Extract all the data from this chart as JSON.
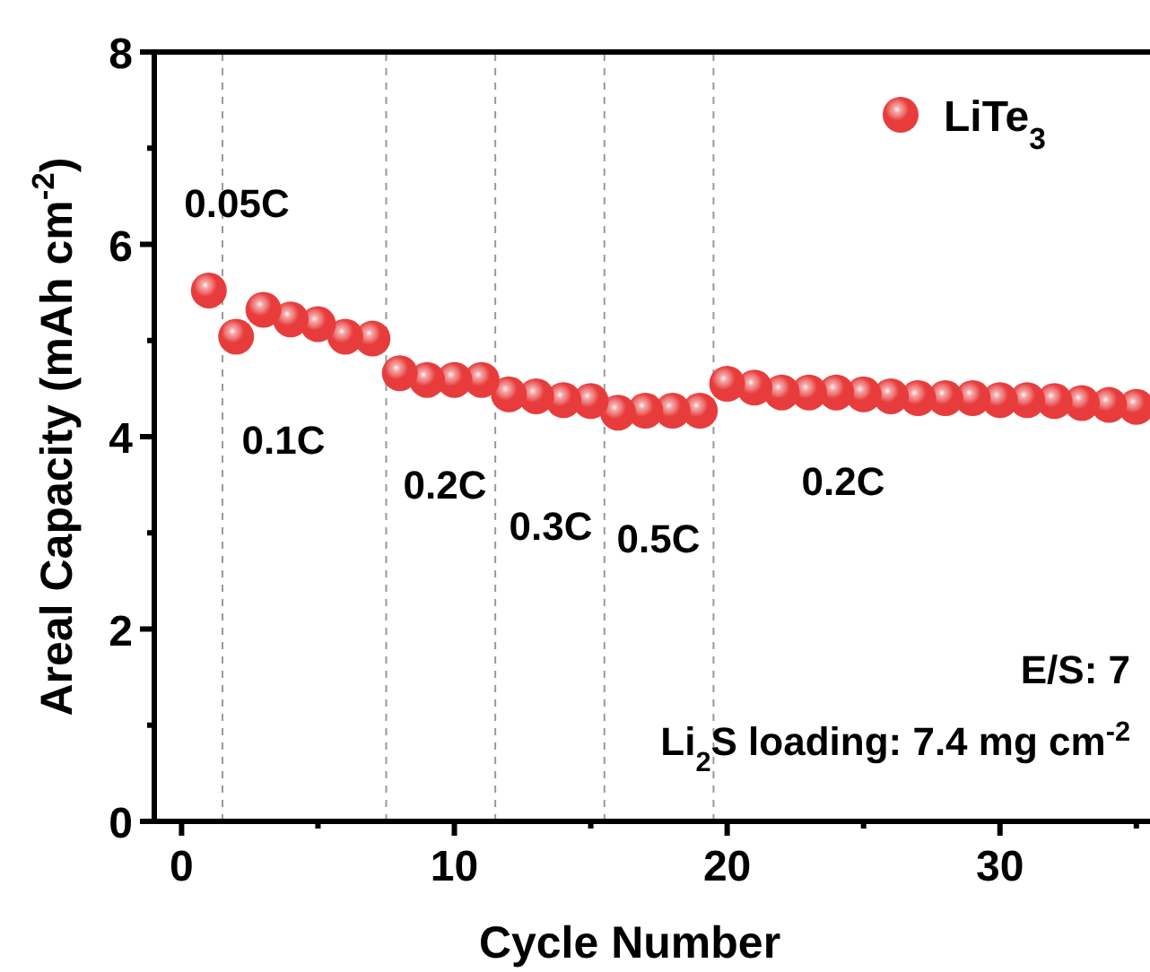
{
  "chart_data": {
    "type": "scatter",
    "xlabel": "Cycle Number",
    "ylabel": "Areal Capacity (mAh cm$^{-2}$)",
    "x": [
      1,
      2,
      3,
      4,
      5,
      6,
      7,
      8,
      9,
      10,
      11,
      12,
      13,
      14,
      15,
      16,
      17,
      18,
      19,
      20,
      21,
      22,
      23,
      24,
      25,
      26,
      27,
      28,
      29,
      30,
      31,
      32,
      33,
      34,
      35
    ],
    "series": [
      {
        "name": "LiTe$_{3}$",
        "color": "#e83c3c",
        "values": [
          5.52,
          5.04,
          5.32,
          5.22,
          5.17,
          5.04,
          5.02,
          4.66,
          4.59,
          4.59,
          4.59,
          4.44,
          4.42,
          4.38,
          4.37,
          4.25,
          4.27,
          4.27,
          4.27,
          4.55,
          4.51,
          4.46,
          4.46,
          4.46,
          4.44,
          4.42,
          4.4,
          4.4,
          4.4,
          4.38,
          4.38,
          4.37,
          4.35,
          4.33,
          4.31
        ]
      }
    ],
    "xlim": [
      -1,
      35.5
    ],
    "ylim": [
      0,
      8
    ],
    "xticks": [
      0,
      10,
      20,
      30
    ],
    "yticks": [
      0,
      2,
      4,
      6,
      8
    ],
    "ref_lines": [
      {
        "axis": "x",
        "value": 1.5,
        "color": "#999999",
        "line_style": "dashed"
      },
      {
        "axis": "x",
        "value": 7.5,
        "color": "#999999",
        "line_style": "dashed"
      },
      {
        "axis": "x",
        "value": 11.5,
        "color": "#999999",
        "line_style": "dashed"
      },
      {
        "axis": "x",
        "value": 15.5,
        "color": "#999999",
        "line_style": "dashed"
      },
      {
        "axis": "x",
        "value": 19.5,
        "color": "#999999",
        "line_style": "dashed"
      }
    ],
    "annotations": [
      "0.05C",
      "0.1C",
      "0.2C",
      "0.3C",
      "0.5C",
      "0.2C",
      "E/S: 7",
      "Li$_{2}$S loading: 7.4 mg cm$^{-2}$"
    ],
    "marker": "circle",
    "legend": "top right",
    "grid": false
  }
}
